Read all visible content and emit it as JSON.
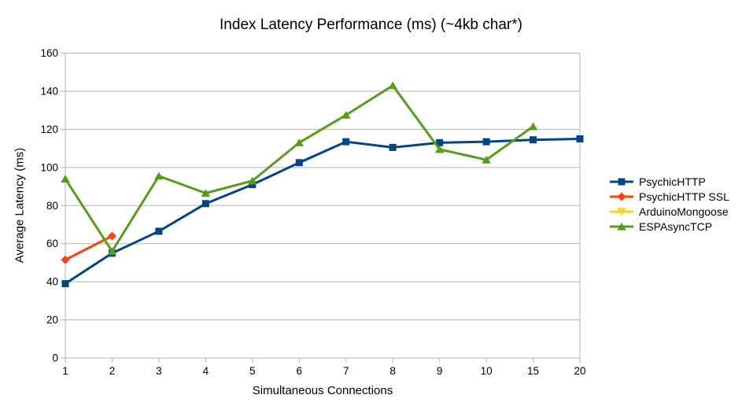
{
  "chart_data": {
    "type": "line",
    "title": "Index Latency Performance (ms) (~4kb char*)",
    "xlabel": "Simultaneous Connections",
    "ylabel": "Average Latency (ms)",
    "categories": [
      "1",
      "2",
      "3",
      "4",
      "5",
      "6",
      "7",
      "8",
      "9",
      "10",
      "15",
      "20"
    ],
    "ylim": [
      0,
      160
    ],
    "ytick_step": 20,
    "grid": true,
    "legend_position": "right",
    "series": [
      {
        "name": "PsychicHTTP",
        "color": "#004586",
        "marker": "square",
        "values": [
          39,
          55,
          66.5,
          81,
          91,
          102.5,
          113.5,
          110.5,
          113,
          113.5,
          114.5,
          115
        ]
      },
      {
        "name": "PsychicHTTP SSL",
        "color": "#ff420e",
        "marker": "diamond",
        "values": [
          51.5,
          64,
          null,
          null,
          null,
          null,
          null,
          null,
          null,
          null,
          null,
          null
        ]
      },
      {
        "name": "ArduinoMongoose",
        "color": "#ffd320",
        "marker": "triangle-down",
        "values": [
          null,
          null,
          null,
          null,
          null,
          null,
          null,
          null,
          null,
          null,
          null,
          null
        ]
      },
      {
        "name": "ESPAsyncTCP",
        "color": "#579d1c",
        "marker": "triangle-up",
        "values": [
          94,
          56,
          95.5,
          86.5,
          93,
          113,
          127.5,
          143,
          109.5,
          104,
          121.5,
          null
        ]
      }
    ],
    "colors": {
      "grid": "#b3b3b3",
      "axis": "#b3b3b3",
      "text": "#000000",
      "background": "#ffffff"
    }
  }
}
